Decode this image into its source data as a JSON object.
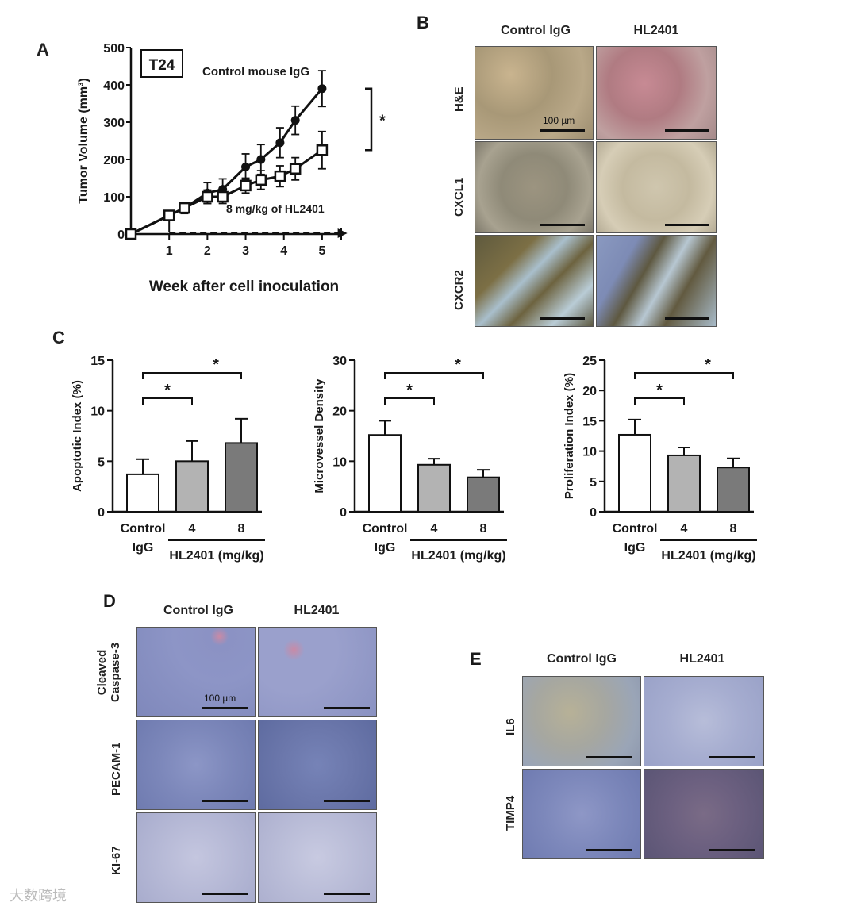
{
  "panels": {
    "a": {
      "letter": "A"
    },
    "b": {
      "letter": "B",
      "cols": [
        "Control IgG",
        "HL2401"
      ],
      "rows": [
        "H&E",
        "CXCL1",
        "CXCR2"
      ],
      "scale_label": "100 µm"
    },
    "c": {
      "letter": "C"
    },
    "d": {
      "letter": "D",
      "cols": [
        "Control IgG",
        "HL2401"
      ],
      "rows": [
        [
          "Cleaved",
          "Caspase-3"
        ],
        [
          "PECAM-1"
        ],
        [
          "KI-67"
        ]
      ],
      "scale_label": "100 µm"
    },
    "e": {
      "letter": "E",
      "cols": [
        "Control IgG",
        "HL2401"
      ],
      "rows": [
        "IL6",
        "TIMP4"
      ]
    }
  },
  "watermark": "大数跨境",
  "chart_data": [
    {
      "type": "line",
      "cell_line_label": "T24",
      "ylabel": "Tumor Volume (mm³)",
      "xlabel": "Week after cell inoculation",
      "xlim": [
        0,
        5.5
      ],
      "ylim": [
        0,
        500
      ],
      "xticks": [
        1,
        2,
        3,
        4,
        5
      ],
      "yticks": [
        0,
        100,
        200,
        300,
        400,
        500
      ],
      "series": [
        {
          "name": "Control mouse IgG",
          "marker": "circle",
          "x": [
            0,
            1,
            1.4,
            2,
            2.4,
            3,
            3.4,
            3.9,
            4.3,
            5
          ],
          "y": [
            0,
            50,
            70,
            110,
            120,
            180,
            200,
            245,
            305,
            390
          ],
          "err": [
            0,
            8,
            15,
            28,
            28,
            35,
            40,
            40,
            38,
            48
          ]
        },
        {
          "name": "8 mg/kg of HL2401",
          "marker": "square",
          "x": [
            0,
            1,
            1.4,
            2,
            2.4,
            3,
            3.4,
            3.9,
            4.3,
            5
          ],
          "y": [
            0,
            50,
            70,
            100,
            100,
            130,
            145,
            155,
            175,
            225
          ],
          "err": [
            0,
            8,
            12,
            18,
            18,
            20,
            25,
            28,
            30,
            50
          ]
        }
      ],
      "treatment_start": 1,
      "significance": "*"
    },
    {
      "type": "bar",
      "ylabel": "Apoptotic Index (%)",
      "ylim": [
        0,
        15
      ],
      "yticks": [
        0,
        5,
        10,
        15
      ],
      "categories": [
        "Control",
        "4",
        "8"
      ],
      "category_sub": "IgG",
      "group_label": "HL2401 (mg/kg)",
      "values": [
        3.7,
        5.0,
        6.8
      ],
      "errors": [
        1.5,
        2.0,
        2.4
      ],
      "colors": [
        "#ffffff",
        "#b3b3b3",
        "#7a7a7a"
      ],
      "significance": [
        "*",
        "*"
      ]
    },
    {
      "type": "bar",
      "ylabel": "Microvessel  Density",
      "ylim": [
        0,
        30
      ],
      "yticks": [
        0,
        10,
        20,
        30
      ],
      "categories": [
        "Control",
        "4",
        "8"
      ],
      "category_sub": "IgG",
      "group_label": "HL2401 (mg/kg)",
      "values": [
        15.2,
        9.3,
        6.8
      ],
      "errors": [
        2.8,
        1.2,
        1.5
      ],
      "colors": [
        "#ffffff",
        "#b3b3b3",
        "#7a7a7a"
      ],
      "significance": [
        "*",
        "*"
      ]
    },
    {
      "type": "bar",
      "ylabel": "Proliferation Index (%)",
      "ylim": [
        0,
        25
      ],
      "yticks": [
        0,
        5,
        10,
        15,
        20,
        25
      ],
      "categories": [
        "Control",
        "4",
        "8"
      ],
      "category_sub": "IgG",
      "group_label": "HL2401 (mg/kg)",
      "values": [
        12.7,
        9.3,
        7.3
      ],
      "errors": [
        2.5,
        1.3,
        1.5
      ],
      "colors": [
        "#ffffff",
        "#b3b3b3",
        "#7a7a7a"
      ],
      "significance": [
        "*",
        "*"
      ]
    }
  ]
}
